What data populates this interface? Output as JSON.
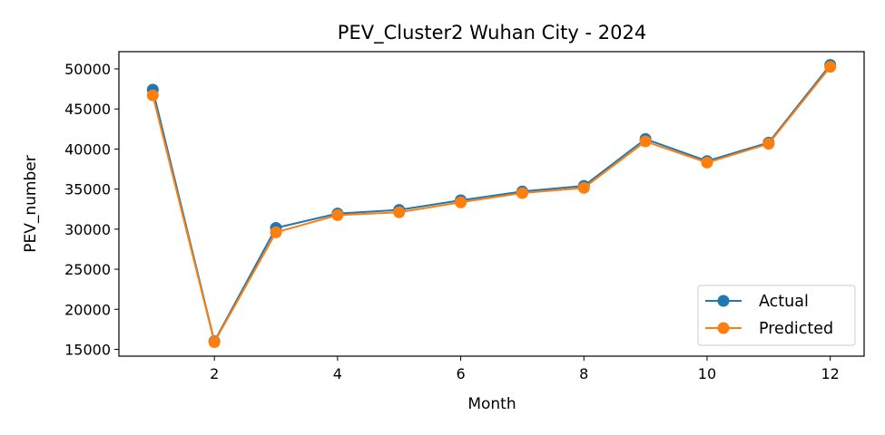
{
  "chart_data": {
    "type": "line",
    "title": "PEV_Cluster2 Wuhan City - 2024",
    "xlabel": "Month",
    "ylabel": "PEV_number",
    "x": [
      1,
      2,
      3,
      4,
      5,
      6,
      7,
      8,
      9,
      10,
      11,
      12
    ],
    "xlim": [
      0.45,
      12.55
    ],
    "ylim": [
      14150,
      52150
    ],
    "x_ticks": [
      2,
      4,
      6,
      8,
      10,
      12
    ],
    "y_ticks": [
      15000,
      20000,
      25000,
      30000,
      35000,
      40000,
      45000,
      50000
    ],
    "grid": false,
    "legend_position": "lower right",
    "series": [
      {
        "name": "Actual",
        "color": "#1f77b4",
        "marker": "circle",
        "values": [
          47400,
          16000,
          30150,
          31950,
          32400,
          33600,
          34700,
          35400,
          41250,
          38500,
          40800,
          50500
        ]
      },
      {
        "name": "Predicted",
        "color": "#ff7f0e",
        "marker": "circle",
        "values": [
          46700,
          15900,
          29600,
          31750,
          32100,
          33350,
          34500,
          35150,
          40950,
          38300,
          40650,
          50250
        ]
      }
    ]
  }
}
